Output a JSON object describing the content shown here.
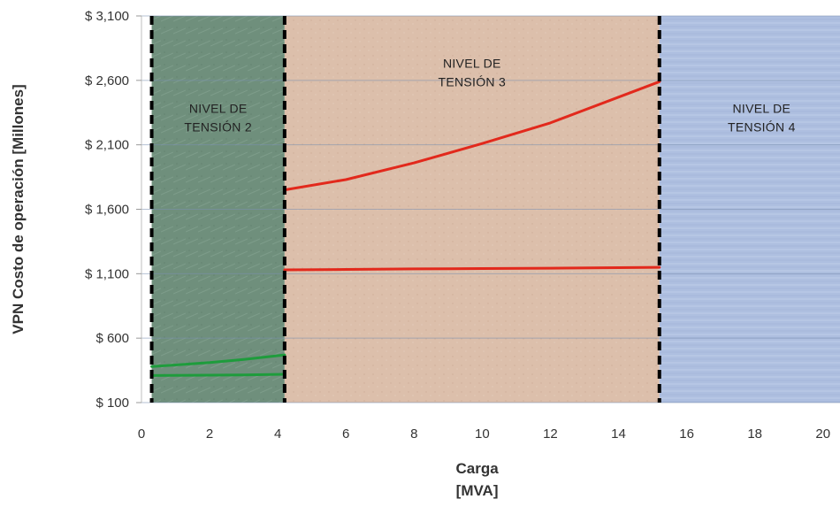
{
  "chart_data": {
    "type": "line",
    "title": "",
    "ylabel": "VPN Costo de operación [Millones]",
    "xlabel_lines": [
      "Carga",
      "[MVA]"
    ],
    "xlim": [
      0,
      20.5
    ],
    "ylim": [
      100,
      3100
    ],
    "x_ticks": [
      {
        "value": 0,
        "label": "0"
      },
      {
        "value": 2,
        "label": "2"
      },
      {
        "value": 4,
        "label": "4"
      },
      {
        "value": 6,
        "label": "6"
      },
      {
        "value": 8,
        "label": "8"
      },
      {
        "value": 10,
        "label": "10"
      },
      {
        "value": 12,
        "label": "12"
      },
      {
        "value": 14,
        "label": "14"
      },
      {
        "value": 16,
        "label": "16"
      },
      {
        "value": 18,
        "label": "18"
      },
      {
        "value": 20,
        "label": "20"
      }
    ],
    "y_ticks": [
      {
        "value": 100,
        "label": "$ 100"
      },
      {
        "value": 600,
        "label": "$ 600"
      },
      {
        "value": 1100,
        "label": "$ 1,100"
      },
      {
        "value": 1600,
        "label": "$ 1,600"
      },
      {
        "value": 2100,
        "label": "$ 2,100"
      },
      {
        "value": 2600,
        "label": "$ 2,600"
      },
      {
        "value": 3100,
        "label": "$ 3,100"
      }
    ],
    "regions": [
      {
        "label_lines": [
          "NIVEL DE",
          "TENSIÓN 2"
        ],
        "x_start": 0.3,
        "x_end": 4.2,
        "color": "#6f8f7c",
        "label_x": 2.25,
        "label_y": 2350
      },
      {
        "label_lines": [
          "NIVEL DE",
          "TENSIÓN 3"
        ],
        "x_start": 4.2,
        "x_end": 15.2,
        "color": "#dcbfab",
        "label_x": 9.7,
        "label_y": 2700
      },
      {
        "label_lines": [
          "NIVEL DE",
          "TENSIÓN 4"
        ],
        "x_start": 15.2,
        "x_end": 20.5,
        "color": "#aebfe0",
        "label_x": 18.2,
        "label_y": 2350
      }
    ],
    "grid": true,
    "series": [
      {
        "color": "#1e9c3c",
        "points": [
          [
            0.3,
            380
          ],
          [
            1,
            392
          ],
          [
            2,
            410
          ],
          [
            3,
            435
          ],
          [
            4.2,
            470
          ]
        ]
      },
      {
        "color": "#1e9c3c",
        "points": [
          [
            0.3,
            310
          ],
          [
            1.5,
            312
          ],
          [
            3,
            315
          ],
          [
            4.2,
            320
          ]
        ]
      },
      {
        "color": "#e2291c",
        "points": [
          [
            4.2,
            1750
          ],
          [
            6,
            1830
          ],
          [
            8,
            1960
          ],
          [
            10,
            2110
          ],
          [
            12,
            2270
          ],
          [
            14,
            2470
          ],
          [
            15.2,
            2590
          ]
        ]
      },
      {
        "color": "#e2291c",
        "points": [
          [
            4.2,
            1130
          ],
          [
            6,
            1133
          ],
          [
            8,
            1137
          ],
          [
            10,
            1140
          ],
          [
            12,
            1143
          ],
          [
            14,
            1147
          ],
          [
            15.2,
            1150
          ]
        ]
      }
    ]
  }
}
